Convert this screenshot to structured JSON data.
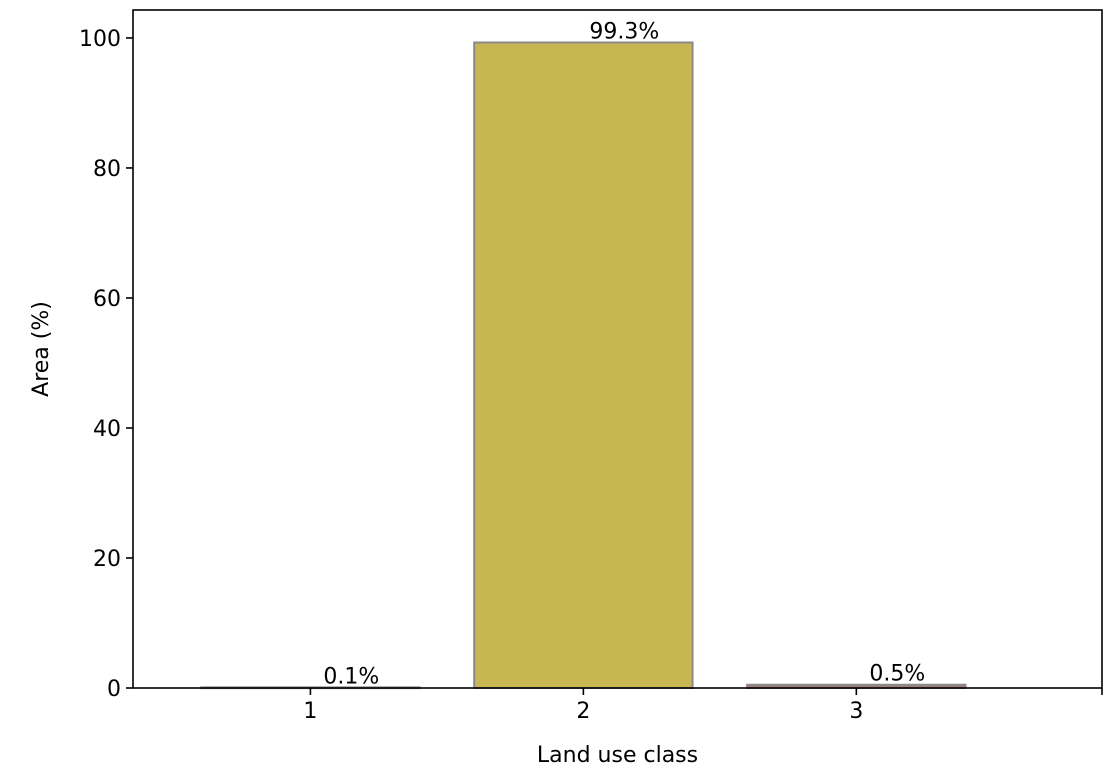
{
  "chart_data": {
    "type": "bar",
    "title": "",
    "xlabel": "Land use class",
    "ylabel": "Area (%)",
    "categories": [
      "1",
      "2",
      "3"
    ],
    "values": [
      0.1,
      99.3,
      0.5
    ],
    "data_labels": [
      "0.1%",
      "99.3%",
      "0.5%"
    ],
    "bar_colors": [
      "#8c564b",
      "#c8b653",
      "#a8787a"
    ],
    "bar_edge_color": "#8a8a8a",
    "yticks": [
      0,
      20,
      40,
      60,
      80,
      100
    ],
    "ylim": [
      0,
      104.3
    ],
    "grid": false,
    "legend": "none"
  }
}
